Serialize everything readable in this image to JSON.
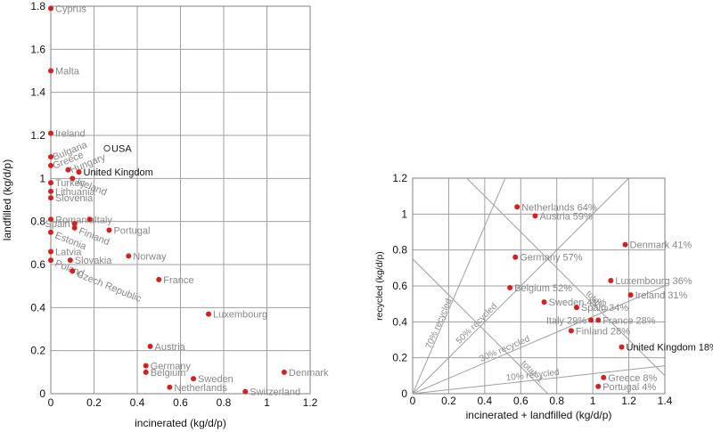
{
  "chart_data": [
    {
      "type": "scatter",
      "title": "",
      "xlabel": "incinerated (kg/d/p)",
      "ylabel": "landfilled (kg/d/p)",
      "xlim": [
        0,
        1.2
      ],
      "ylim": [
        0,
        1.8
      ],
      "xticks": [
        "0",
        "0.2",
        "0.4",
        "0.6",
        "0.8",
        "1",
        "1.2"
      ],
      "yticks": [
        "0",
        "0.2",
        "0.4",
        "0.6",
        "0.8",
        "1",
        "1.2",
        "1.4",
        "1.6",
        "1.8"
      ],
      "grid": true,
      "points": [
        {
          "label": "Cyprus",
          "x": 0.0,
          "y": 1.79,
          "label_pos": "right"
        },
        {
          "label": "Malta",
          "x": 0.0,
          "y": 1.5,
          "label_pos": "right"
        },
        {
          "label": "Ireland",
          "x": 0.0,
          "y": 1.21,
          "label_pos": "right"
        },
        {
          "label": "USA",
          "x": 0.26,
          "y": 1.14,
          "label_pos": "right",
          "hollow": true,
          "dark": true
        },
        {
          "label": "Bulgaria",
          "x": 0.0,
          "y": 1.1,
          "label_pos": "rot-right"
        },
        {
          "label": "Greece",
          "x": 0.0,
          "y": 1.06,
          "label_pos": "rot-right"
        },
        {
          "label": "Hungary",
          "x": 0.08,
          "y": 1.04,
          "label_pos": "rot-right"
        },
        {
          "label": "United Kingdom",
          "x": 0.13,
          "y": 1.03,
          "label_pos": "right",
          "dark": true
        },
        {
          "label": "Iceland",
          "x": 0.1,
          "y": 1.0,
          "label_pos": "rot-down"
        },
        {
          "label": "Turkey",
          "x": 0.0,
          "y": 0.98,
          "label_pos": "right"
        },
        {
          "label": "Lithuania",
          "x": 0.0,
          "y": 0.94,
          "label_pos": "right"
        },
        {
          "label": "Slovenia",
          "x": 0.0,
          "y": 0.91,
          "label_pos": "right"
        },
        {
          "label": "Romania",
          "x": 0.0,
          "y": 0.81,
          "label_pos": "right"
        },
        {
          "label": "Italy",
          "x": 0.18,
          "y": 0.81,
          "label_pos": "right"
        },
        {
          "label": "Spain",
          "x": 0.11,
          "y": 0.79,
          "label_pos": "left"
        },
        {
          "label": "Finland",
          "x": 0.11,
          "y": 0.77,
          "label_pos": "rot-down"
        },
        {
          "label": "Portugal",
          "x": 0.27,
          "y": 0.76,
          "label_pos": "right"
        },
        {
          "label": "Estonia",
          "x": 0.0,
          "y": 0.75,
          "label_pos": "rot-down"
        },
        {
          "label": "Latvia",
          "x": 0.0,
          "y": 0.66,
          "label_pos": "right"
        },
        {
          "label": "Norway",
          "x": 0.36,
          "y": 0.64,
          "label_pos": "right"
        },
        {
          "label": "Poland",
          "x": 0.0,
          "y": 0.62,
          "label_pos": "rot-down"
        },
        {
          "label": "Slovakia",
          "x": 0.09,
          "y": 0.62,
          "label_pos": "right"
        },
        {
          "label": "Czech Republic",
          "x": 0.1,
          "y": 0.57,
          "label_pos": "rot-down"
        },
        {
          "label": "France",
          "x": 0.5,
          "y": 0.53,
          "label_pos": "right"
        },
        {
          "label": "Luxembourg",
          "x": 0.73,
          "y": 0.37,
          "label_pos": "right"
        },
        {
          "label": "Austria",
          "x": 0.46,
          "y": 0.22,
          "label_pos": "right"
        },
        {
          "label": "Germany",
          "x": 0.44,
          "y": 0.13,
          "label_pos": "right"
        },
        {
          "label": "Belgium",
          "x": 0.44,
          "y": 0.1,
          "label_pos": "right"
        },
        {
          "label": "Sweden",
          "x": 0.66,
          "y": 0.07,
          "label_pos": "right"
        },
        {
          "label": "Netherlands",
          "x": 0.55,
          "y": 0.03,
          "label_pos": "right"
        },
        {
          "label": "Denmark",
          "x": 1.08,
          "y": 0.1,
          "label_pos": "right"
        },
        {
          "label": "Switzerland",
          "x": 0.9,
          "y": 0.01,
          "label_pos": "right"
        }
      ]
    },
    {
      "type": "scatter",
      "title": "",
      "xlabel": "incinerated + landfilled (kg/d/p)",
      "ylabel": "recycled (kg/d/p)",
      "xlim": [
        0,
        1.4
      ],
      "ylim": [
        0,
        1.2
      ],
      "xticks": [
        "0",
        "0.2",
        "0.4",
        "0.6",
        "0.8",
        "1",
        "1.2",
        "1.4"
      ],
      "yticks": [
        "0",
        "0.2",
        "0.4",
        "0.6",
        "0.8",
        "1",
        "1.2"
      ],
      "grid": true,
      "guides": [
        {
          "label": "70% recycled",
          "kind": "share",
          "share": 0.7
        },
        {
          "label": "50% recycled",
          "kind": "share",
          "share": 0.5
        },
        {
          "label": "30% recycled",
          "kind": "share",
          "share": 0.3
        },
        {
          "label": "10% recycled",
          "kind": "share",
          "share": 0.1
        },
        {
          "label": "total=1",
          "kind": "total",
          "total": 1
        },
        {
          "label": "total=2",
          "kind": "total",
          "total": 2
        }
      ],
      "points": [
        {
          "label": "Netherlands 64%",
          "x": 0.58,
          "y": 1.04,
          "label_pos": "right"
        },
        {
          "label": "Austria 59%",
          "x": 0.68,
          "y": 0.99,
          "label_pos": "right"
        },
        {
          "label": "Denmark 41%",
          "x": 1.18,
          "y": 0.83,
          "label_pos": "right"
        },
        {
          "label": "Germany 57%",
          "x": 0.57,
          "y": 0.76,
          "label_pos": "right"
        },
        {
          "label": "Luxembourg 36%",
          "x": 1.1,
          "y": 0.63,
          "label_pos": "right"
        },
        {
          "label": "Belgium 52%",
          "x": 0.54,
          "y": 0.59,
          "label_pos": "right"
        },
        {
          "label": "Ireland 31%",
          "x": 1.21,
          "y": 0.55,
          "label_pos": "right"
        },
        {
          "label": "Sweden 41%",
          "x": 0.73,
          "y": 0.51,
          "label_pos": "right"
        },
        {
          "label": "Spain 34%",
          "x": 0.91,
          "y": 0.48,
          "label_pos": "right"
        },
        {
          "label": "Italy 29%",
          "x": 0.99,
          "y": 0.41,
          "label_pos": "left"
        },
        {
          "label": "France 28%",
          "x": 1.03,
          "y": 0.41,
          "label_pos": "right"
        },
        {
          "label": "Finland 28%",
          "x": 0.88,
          "y": 0.35,
          "label_pos": "right"
        },
        {
          "label": "United Kingdom 18%",
          "x": 1.16,
          "y": 0.26,
          "label_pos": "right",
          "dark": true
        },
        {
          "label": "Greece 8%",
          "x": 1.06,
          "y": 0.09,
          "label_pos": "right"
        },
        {
          "label": "Portugal 4%",
          "x": 1.03,
          "y": 0.04,
          "label_pos": "right"
        }
      ]
    }
  ],
  "colors": {
    "point": "#d42020",
    "label": "#888888",
    "label_dark": "#111111",
    "grid": "#a0a0a0",
    "axis_text": "#111111"
  }
}
